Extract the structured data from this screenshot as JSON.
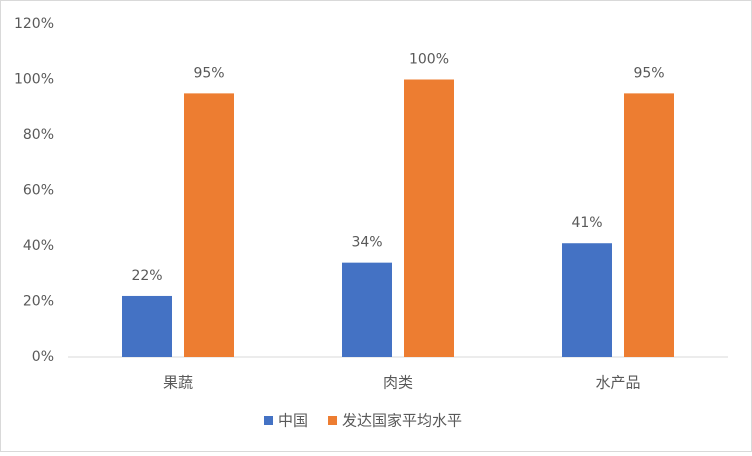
{
  "chart_data": {
    "type": "bar",
    "categories": [
      "果蔬",
      "肉类",
      "水产品"
    ],
    "series": [
      {
        "name": "中国",
        "color": "#4472c4",
        "values": [
          22,
          34,
          41
        ],
        "value_labels": [
          "22%",
          "34%",
          "41%"
        ]
      },
      {
        "name": "发达国家平均水平",
        "color": "#ed7d31",
        "values": [
          95,
          100,
          95
        ],
        "value_labels": [
          "95%",
          "100%",
          "95%"
        ]
      }
    ],
    "ylim": [
      0,
      120
    ],
    "yticks": [
      {
        "value": 0,
        "label": "0%"
      },
      {
        "value": 20,
        "label": "20%"
      },
      {
        "value": 40,
        "label": "40%"
      },
      {
        "value": 60,
        "label": "60%"
      },
      {
        "value": 80,
        "label": "80%"
      },
      {
        "value": 100,
        "label": "100%"
      },
      {
        "value": 120,
        "label": "120%"
      }
    ],
    "grid": false,
    "legend": "bottom"
  }
}
